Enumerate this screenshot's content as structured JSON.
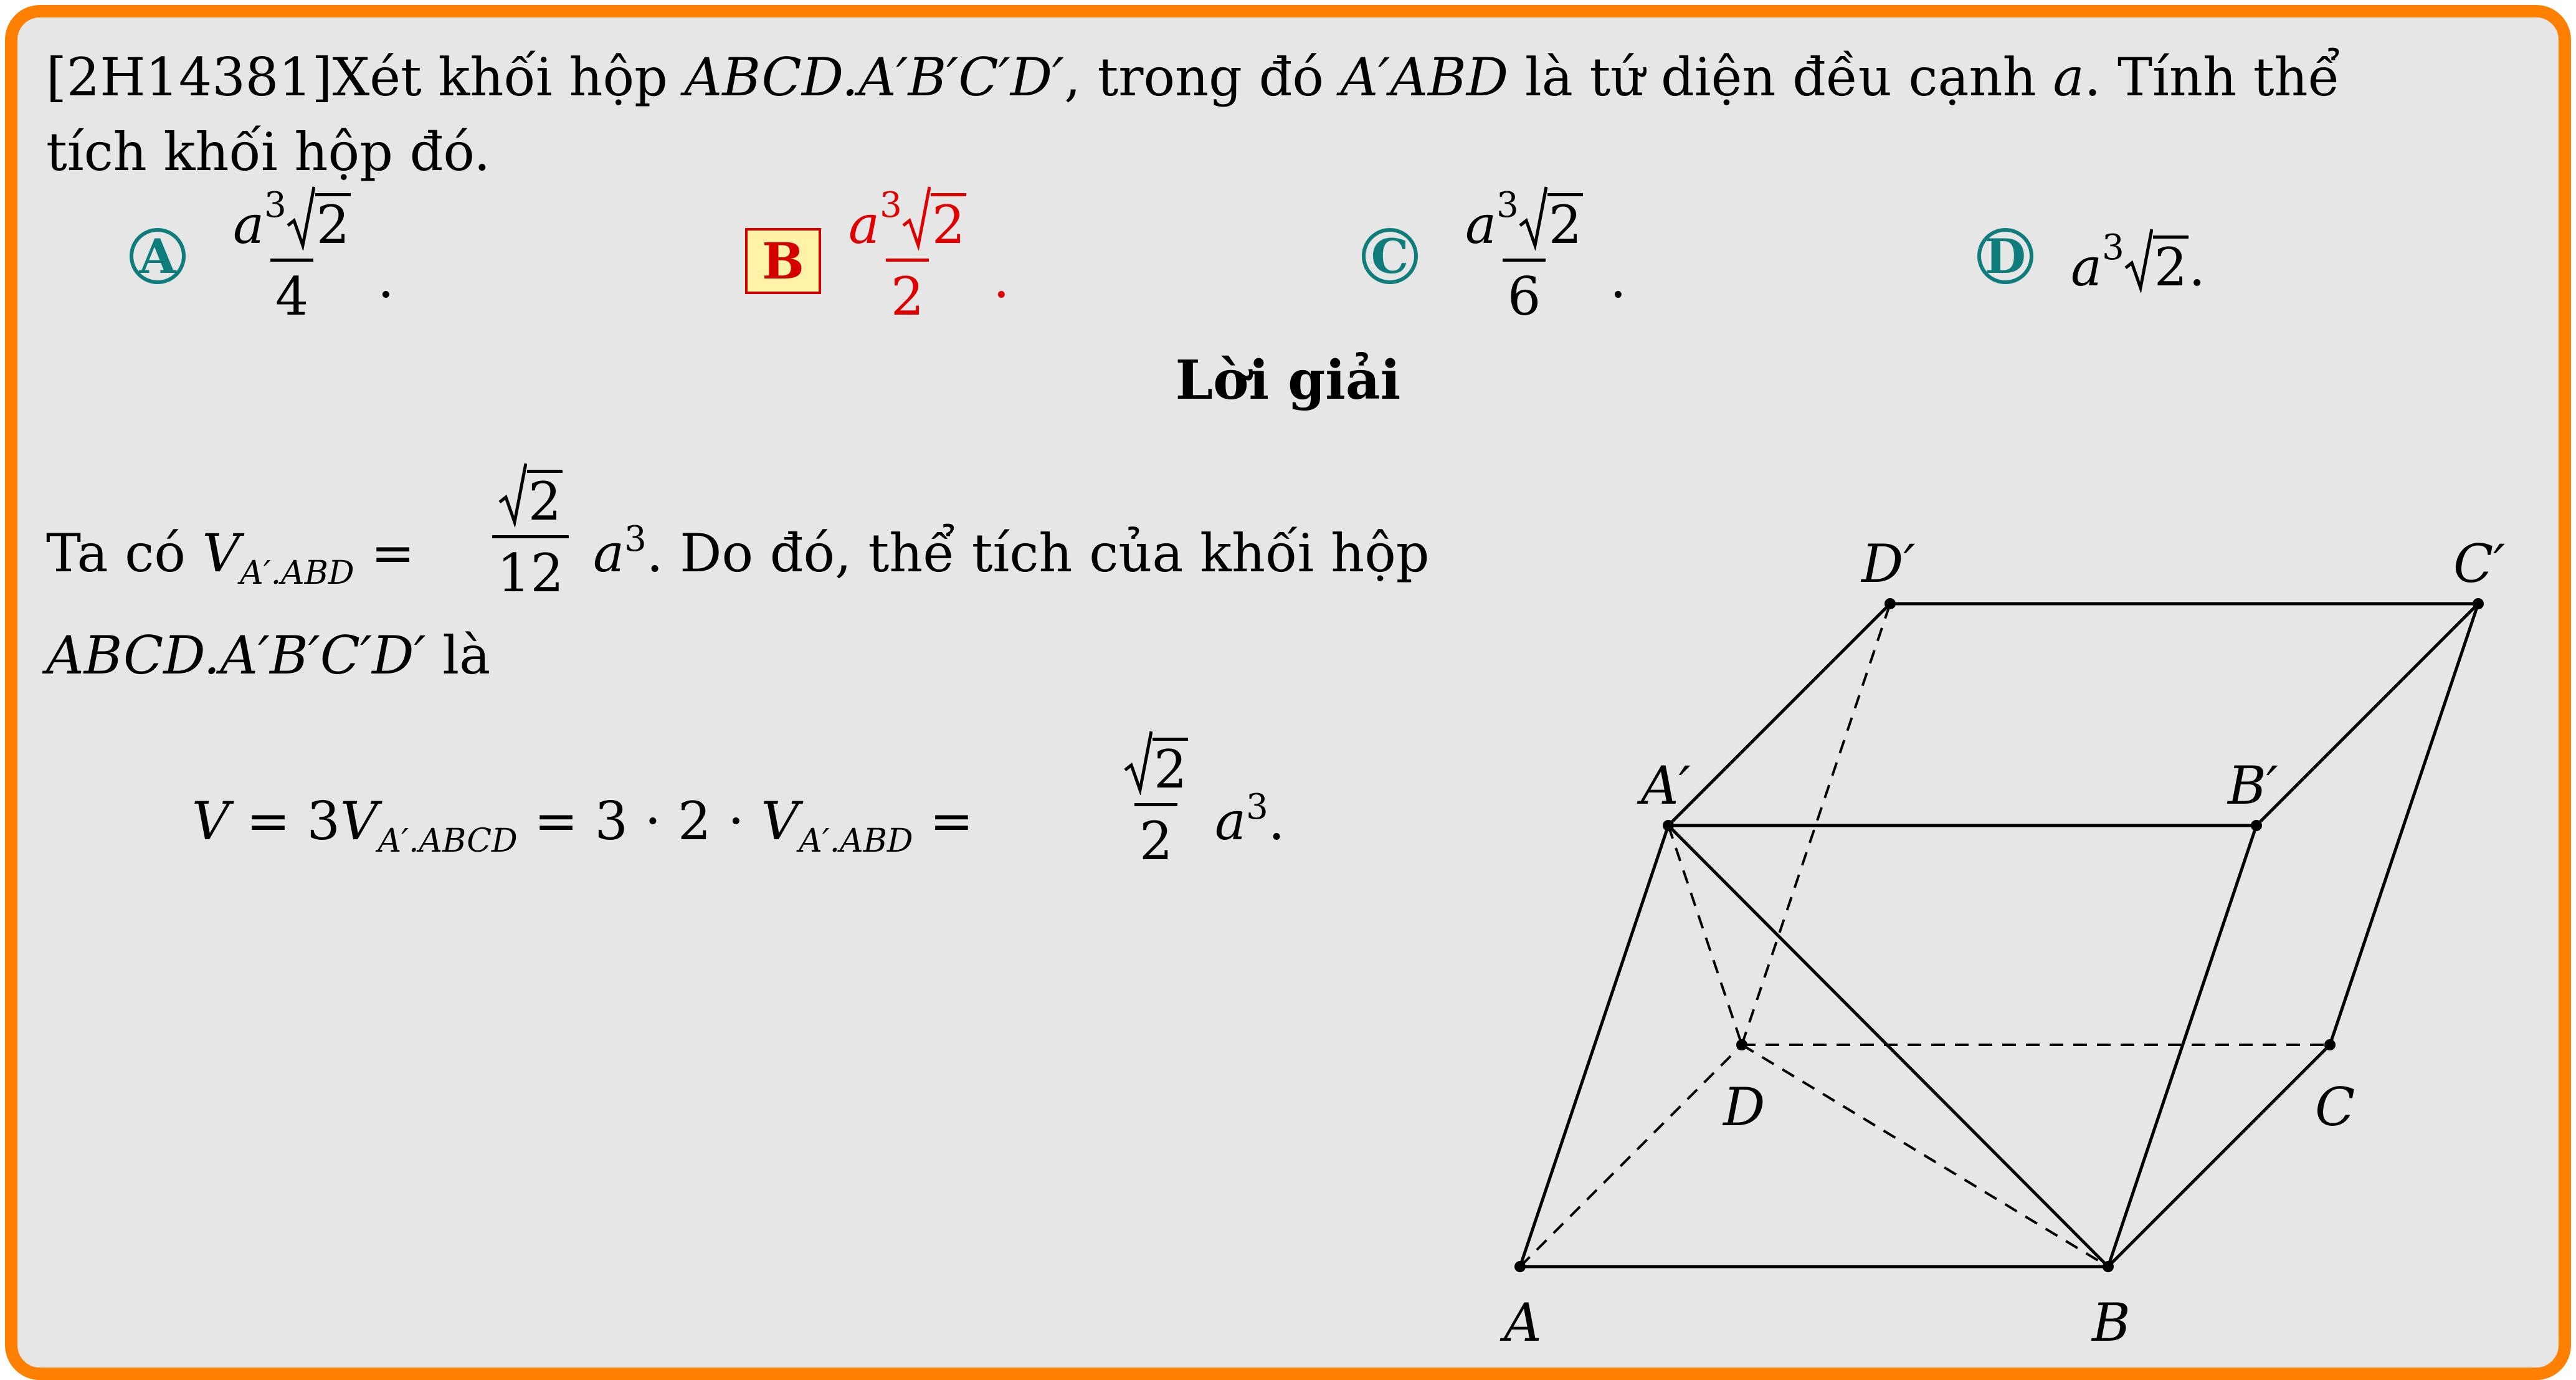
{
  "question": {
    "id": "[2H14381]",
    "text_1": "Xét khối hộp ",
    "solid": "ABCD.A′B′C′D′",
    "text_2": ", trong đó ",
    "tetra": "A′ABD",
    "text_3": " là tứ diện đều cạnh ",
    "edge": "a",
    "text_4": ". Tính thể",
    "line2": "tích khối hộp đó."
  },
  "options": [
    {
      "letter": "A",
      "num_base": "a",
      "num_exp": "3",
      "num_root": "2",
      "den": "4",
      "tail": ".",
      "style": "circle"
    },
    {
      "letter": "B",
      "num_base": "a",
      "num_exp": "3",
      "num_root": "2",
      "den": "2",
      "tail": ".",
      "style": "selected"
    },
    {
      "letter": "C",
      "num_base": "a",
      "num_exp": "3",
      "num_root": "2",
      "den": "6",
      "tail": ".",
      "style": "circle"
    },
    {
      "letter": "D",
      "base": "a",
      "exp": "3",
      "root": "2",
      "tail": ".",
      "style": "circle"
    }
  ],
  "solution": {
    "title": "Lời giải",
    "p1_a": "Ta có ",
    "p1_V": "V",
    "p1_sub": "A′.ABD",
    "p1_eq": " = ",
    "p1_num_root": "2",
    "p1_den": "12",
    "p1_a3": "a",
    "p1_a3_exp": "3",
    "p1_b": ". Do đó, thể tích của khối hộp",
    "p2_solid": "ABCD.A′B′C′D′",
    "p2_tail": " là",
    "eq_V": "V",
    "eq_eq1": " = 3",
    "eq_V2": "V",
    "eq_sub2": "A′.ABCD",
    "eq_mid": " = 3 · 2 · ",
    "eq_V3": "V",
    "eq_sub3": "A′.ABD",
    "eq_eq2": " = ",
    "eq_num_root": "2",
    "eq_den": "2",
    "eq_a": "a",
    "eq_a_exp": "3",
    "eq_end": "."
  },
  "figure": {
    "labels": {
      "A": "A",
      "B": "B",
      "C": "C",
      "D": "D",
      "A1": "A′",
      "B1": "B′",
      "C1": "C′",
      "D1": "D′"
    }
  },
  "colors": {
    "frame": "#ff8000",
    "background": "#e6e6e6",
    "option_circle": "#0e7c7b",
    "answer": "#e00000",
    "answer_box_fill": "#fff3a8"
  }
}
